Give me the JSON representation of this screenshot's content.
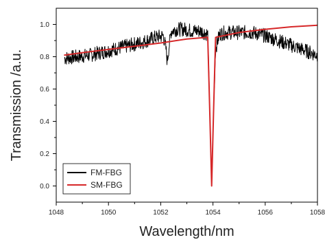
{
  "chart_data": {
    "type": "line",
    "title": "",
    "xlabel": "Wavelength/nm",
    "ylabel": "Transmission /a.u.",
    "xlim": [
      1048,
      1058
    ],
    "ylim": [
      -0.1,
      1.1
    ],
    "x_ticks": [
      "1048",
      "1050",
      "1052",
      "1054",
      "1056",
      "1058"
    ],
    "y_ticks": [
      "0.0",
      "0.2",
      "0.4",
      "0.6",
      "0.8",
      "1.0"
    ],
    "grid": false,
    "legend_position": "bottom-left",
    "series": [
      {
        "name": "FM-FBG",
        "color": "#000000",
        "noisy": true,
        "x": [
          1048.3,
          1048.8,
          1049.3,
          1049.8,
          1050.3,
          1050.8,
          1051.3,
          1051.8,
          1052.1,
          1052.2,
          1052.25,
          1052.3,
          1052.4,
          1052.6,
          1052.9,
          1053.2,
          1053.5,
          1053.8,
          1053.88,
          1053.95,
          1054.02,
          1054.1,
          1054.25,
          1054.5,
          1055.0,
          1055.5,
          1056.0,
          1056.5,
          1057.0,
          1057.5,
          1058.0
        ],
        "y": [
          0.79,
          0.8,
          0.81,
          0.83,
          0.85,
          0.87,
          0.89,
          0.92,
          0.93,
          0.85,
          0.77,
          0.84,
          0.96,
          0.97,
          0.97,
          0.96,
          0.96,
          0.94,
          0.45,
          0.0,
          0.45,
          0.85,
          0.94,
          0.95,
          0.95,
          0.95,
          0.93,
          0.9,
          0.87,
          0.84,
          0.81
        ]
      },
      {
        "name": "SM-FBG",
        "color": "#d62728",
        "noisy": false,
        "x": [
          1048.3,
          1049.0,
          1050.0,
          1051.0,
          1052.0,
          1053.0,
          1053.8,
          1053.88,
          1053.95,
          1054.02,
          1054.1,
          1055.0,
          1056.0,
          1057.0,
          1058.0
        ],
        "y": [
          0.81,
          0.825,
          0.845,
          0.865,
          0.885,
          0.91,
          0.92,
          0.45,
          0.0,
          0.45,
          0.92,
          0.95,
          0.97,
          0.985,
          0.995
        ]
      }
    ]
  }
}
